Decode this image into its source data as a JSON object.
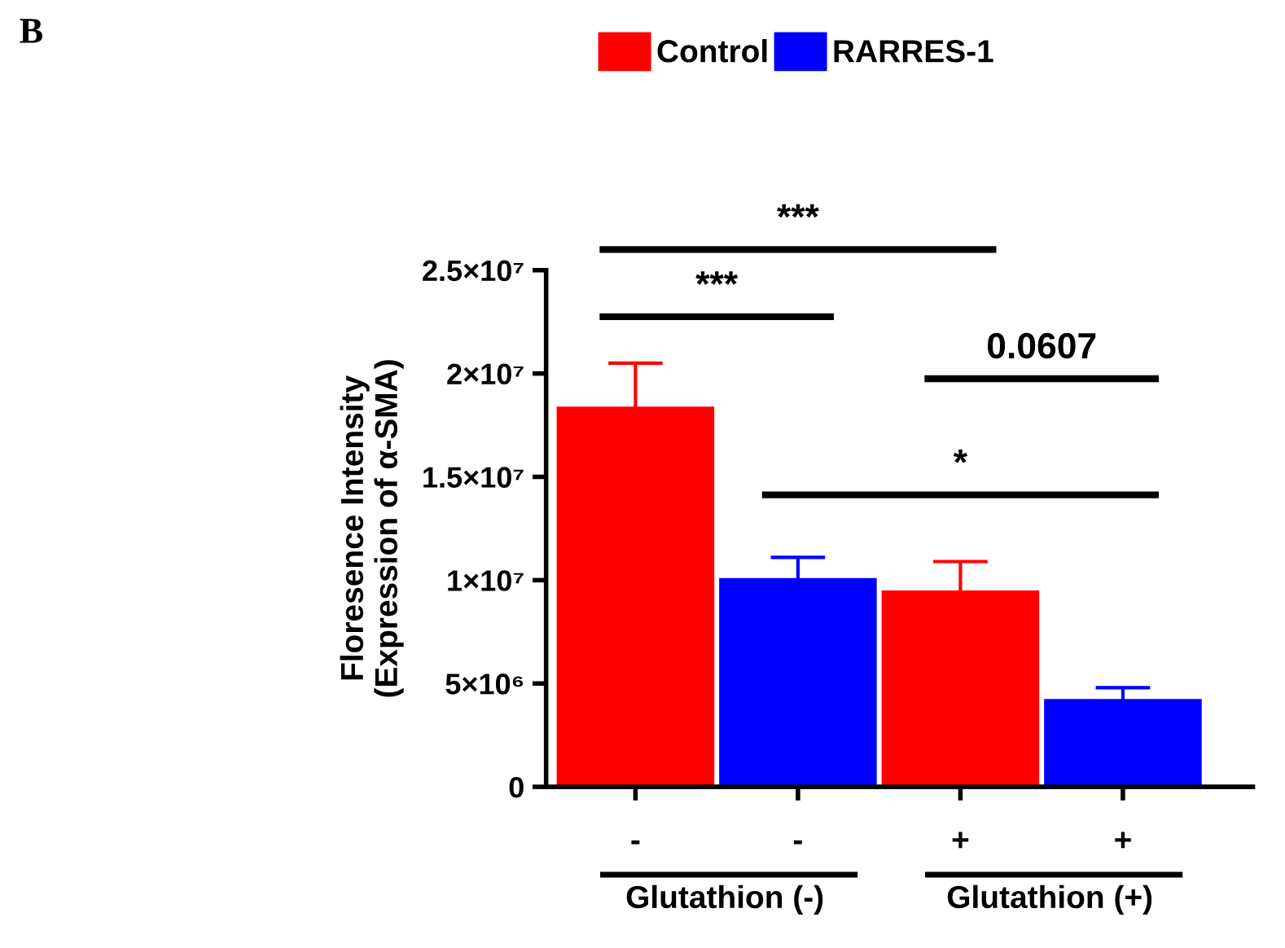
{
  "chart_data": {
    "type": "bar",
    "categories": [
      "-",
      "-",
      "+",
      "+"
    ],
    "series": [
      {
        "name": "Control",
        "color": "#ff0000",
        "values": [
          18400000,
          null,
          9500000,
          null
        ],
        "errors": [
          2100000,
          null,
          1400000,
          null
        ]
      },
      {
        "name": "RARRES-1",
        "color": "#0000ff",
        "values": [
          null,
          10100000,
          null,
          4250000
        ],
        "errors": [
          null,
          1000000,
          null,
          550000
        ]
      }
    ],
    "ylabel": "Floresence Intensity\n(Expression of α-SMA)",
    "ylim": [
      0,
      25000000
    ],
    "yticks": [
      0,
      {
        "value": 5000000,
        "label": "5×10⁶"
      },
      {
        "value": 10000000,
        "label": "1×10⁷"
      },
      {
        "value": 15000000,
        "label": "1.5×10⁷"
      },
      {
        "value": 20000000,
        "label": "2×10⁷"
      },
      {
        "value": 25000000,
        "label": "2.5×10⁷"
      }
    ],
    "annotations": [
      "B",
      "***",
      "***",
      "0.0607",
      "*",
      "Glutathion (-)",
      "Glutathion (+)"
    ],
    "legend": "top",
    "grid": false
  }
}
